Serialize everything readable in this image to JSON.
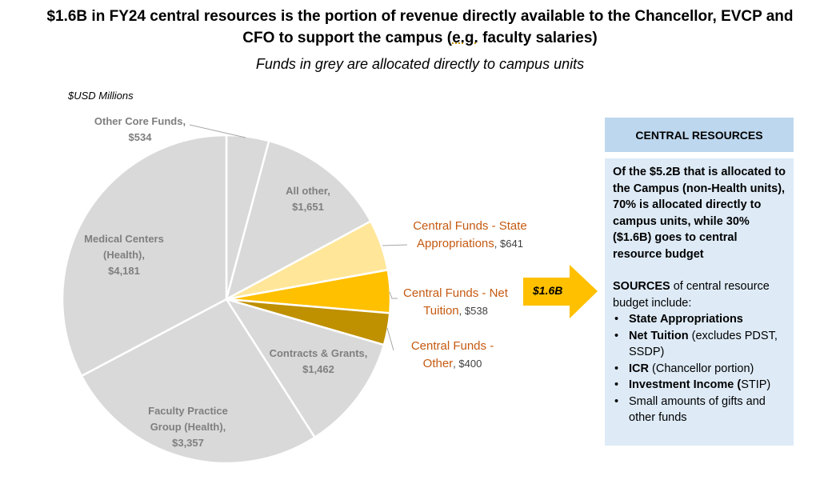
{
  "title": {
    "line1": "$1.6B in FY24 central resources is the portion of revenue directly available to the Chancellor, EVCP and",
    "line2_pre": "CFO to support the campus (",
    "line2_eg": "e.g.",
    "line2_post": " faculty salaries)"
  },
  "subtitle": "Funds in grey are allocated directly to campus units",
  "units": "$USD Millions",
  "chart_data": {
    "type": "pie",
    "unit": "$USD Millions",
    "start": "12 o'clock, clockwise",
    "slices": [
      {
        "name": "Other Core Funds",
        "value": 534,
        "label_value": "$534",
        "color": "#d9d9d9"
      },
      {
        "name": "All other",
        "value": 1651,
        "label_value": "$1,651",
        "color": "#d9d9d9"
      },
      {
        "name": "Central Funds - State Appropriations",
        "name_a": "Central Funds - State",
        "name_b": "Appropriations",
        "value": 641,
        "label_value": "$641",
        "color": "#ffe699"
      },
      {
        "name": "Central Funds - Net Tuition",
        "name_a": "Central Funds - Net",
        "name_b": "Tuition",
        "value": 538,
        "label_value": "$538",
        "color": "#ffc000"
      },
      {
        "name": "Central Funds - Other",
        "name_a": "Central Funds -",
        "name_b": "Other",
        "value": 400,
        "label_value": "$400",
        "color": "#bf9000"
      },
      {
        "name": "Contracts & Grants",
        "value": 1462,
        "label_value": "$1,462",
        "color": "#d9d9d9"
      },
      {
        "name": "Faculty Practice Group (Health)",
        "name_a": "Faculty Practice",
        "name_b": "Group (Health),",
        "value": 3357,
        "label_value": "$3,357",
        "color": "#d9d9d9"
      },
      {
        "name": "Medical Centers (Health)",
        "name_a": "Medical Centers",
        "name_b": "(Health),",
        "value": 4181,
        "label_value": "$4,181",
        "color": "#d9d9d9"
      }
    ]
  },
  "arrow": {
    "label": "$1.6B",
    "color": "#ffc000"
  },
  "panel": {
    "header": "CENTRAL RESOURCES",
    "intro": "Of the $5.2B that is allocated to the Campus (non-Health units), 70% is allocated directly to campus units, while 30% ($1.6B) goes to central resource budget",
    "sources_bold": "SOURCES",
    "sources_rest": " of central resource budget include:",
    "items": [
      {
        "bold": "State Appropriations",
        "rest": ""
      },
      {
        "bold": "Net Tuition",
        "rest": " (excludes PDST, SSDP)"
      },
      {
        "bold": "ICR",
        "rest": " (Chancellor portion)"
      },
      {
        "bold": "Investment Income (",
        "rest": "STIP)"
      },
      {
        "bold": "",
        "rest": "Small amounts of gifts and other funds"
      }
    ]
  }
}
